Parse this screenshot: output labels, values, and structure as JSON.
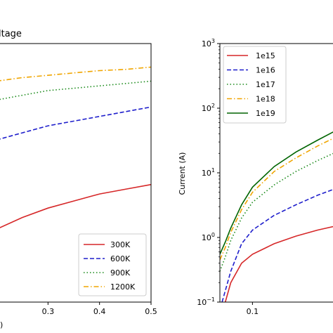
{
  "chart_data": [
    {
      "type": "line",
      "title": "ltage",
      "xlabel": ")",
      "ylabel": "",
      "xlim": [
        0.2,
        0.5
      ],
      "x_ticks": [
        {
          "value": 0.3,
          "label": "0.3"
        },
        {
          "value": 0.4,
          "label": "0.4"
        },
        {
          "value": 0.5,
          "label": "0.5"
        }
      ],
      "legend_position": "lower right",
      "grid": false,
      "series": [
        {
          "name": "300K",
          "color": "#d62728",
          "style": "solid",
          "x": [
            0.2,
            0.25,
            0.3,
            0.35,
            0.4,
            0.45,
            0.5
          ],
          "y": [
            0.31,
            0.36,
            0.4,
            0.43,
            0.46,
            0.48,
            0.5
          ]
        },
        {
          "name": "600K",
          "color": "#1f1fcc",
          "style": "dashed",
          "x": [
            0.2,
            0.25,
            0.3,
            0.35,
            0.4,
            0.45,
            0.5
          ],
          "y": [
            0.69,
            0.72,
            0.75,
            0.77,
            0.79,
            0.81,
            0.83
          ]
        },
        {
          "name": "900K",
          "color": "#1a8a1a",
          "style": "dotted",
          "x": [
            0.2,
            0.25,
            0.3,
            0.35,
            0.4,
            0.45,
            0.5
          ],
          "y": [
            0.86,
            0.88,
            0.9,
            0.91,
            0.92,
            0.93,
            0.94
          ]
        },
        {
          "name": "1200K",
          "color": "#f0a500",
          "style": "dashdot",
          "x": [
            0.2,
            0.25,
            0.3,
            0.35,
            0.4,
            0.45,
            0.5
          ],
          "y": [
            0.94,
            0.955,
            0.965,
            0.975,
            0.985,
            0.99,
            1.0
          ]
        }
      ]
    },
    {
      "type": "line",
      "title": "",
      "xlabel": "",
      "ylabel": "Current (A)",
      "yscale": "log",
      "ylim": [
        0.1,
        1000
      ],
      "xlim": [
        0.07,
        0.18
      ],
      "y_ticks": [
        {
          "value": 0.1,
          "base": "10",
          "exp": "−1"
        },
        {
          "value": 1,
          "base": "10",
          "exp": "0"
        },
        {
          "value": 10,
          "base": "10",
          "exp": "1"
        },
        {
          "value": 100,
          "base": "10",
          "exp": "2"
        },
        {
          "value": 1000,
          "base": "10",
          "exp": "3"
        }
      ],
      "x_ticks": [
        {
          "value": 0.1,
          "label": "0.1"
        }
      ],
      "legend_position": "upper left",
      "grid": false,
      "series": [
        {
          "name": "1e15",
          "color": "#d62728",
          "style": "solid",
          "x": [
            0.075,
            0.08,
            0.09,
            0.1,
            0.12,
            0.14,
            0.16,
            0.18
          ],
          "y": [
            0.1,
            0.2,
            0.4,
            0.55,
            0.8,
            1.05,
            1.3,
            1.55
          ]
        },
        {
          "name": "1e16",
          "color": "#1f1fcc",
          "style": "dashed",
          "x": [
            0.072,
            0.075,
            0.08,
            0.09,
            0.1,
            0.12,
            0.14,
            0.16,
            0.18
          ],
          "y": [
            0.1,
            0.15,
            0.3,
            0.8,
            1.3,
            2.2,
            3.2,
            4.5,
            6.0
          ]
        },
        {
          "name": "1e17",
          "color": "#1a8a1a",
          "style": "dotted",
          "x": [
            0.07,
            0.075,
            0.08,
            0.09,
            0.1,
            0.12,
            0.14,
            0.16,
            0.18
          ],
          "y": [
            0.3,
            0.5,
            0.9,
            2.0,
            3.5,
            6.5,
            10.5,
            15.5,
            22.0
          ]
        },
        {
          "name": "1e18",
          "color": "#f0a500",
          "style": "dashdot",
          "x": [
            0.07,
            0.075,
            0.08,
            0.09,
            0.1,
            0.12,
            0.14,
            0.16,
            0.18
          ],
          "y": [
            0.45,
            0.7,
            1.2,
            2.7,
            5.0,
            10.5,
            17.0,
            26.0,
            38.0
          ]
        },
        {
          "name": "1e19",
          "color": "#006400",
          "style": "solid",
          "x": [
            0.07,
            0.075,
            0.08,
            0.09,
            0.1,
            0.12,
            0.14,
            0.16,
            0.18
          ],
          "y": [
            0.55,
            0.85,
            1.4,
            3.2,
            6.0,
            12.5,
            21.0,
            32.0,
            48.0
          ]
        }
      ]
    }
  ]
}
